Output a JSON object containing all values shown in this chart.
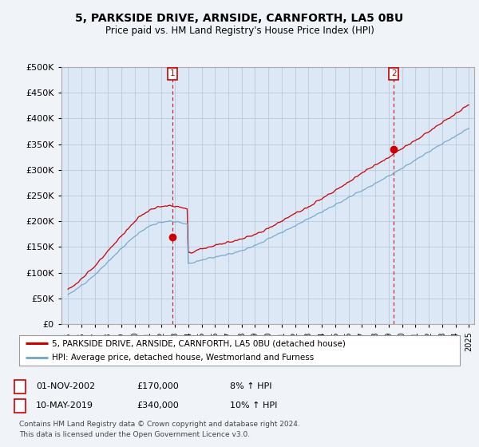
{
  "title": "5, PARKSIDE DRIVE, ARNSIDE, CARNFORTH, LA5 0BU",
  "subtitle": "Price paid vs. HM Land Registry's House Price Index (HPI)",
  "legend_line1": "5, PARKSIDE DRIVE, ARNSIDE, CARNFORTH, LA5 0BU (detached house)",
  "legend_line2": "HPI: Average price, detached house, Westmorland and Furness",
  "transaction1_date": "01-NOV-2002",
  "transaction1_price": 170000,
  "transaction1_label": "8% ↑ HPI",
  "transaction2_date": "10-MAY-2019",
  "transaction2_price": 340000,
  "transaction2_label": "10% ↑ HPI",
  "footnote1": "Contains HM Land Registry data © Crown copyright and database right 2024.",
  "footnote2": "This data is licensed under the Open Government Licence v3.0.",
  "price_color": "#cc0000",
  "hpi_color": "#7aaacc",
  "background_color": "#f0f4f8",
  "plot_bg_color": "#dce8f5",
  "grid_color": "#b0c4d8",
  "ylim": [
    0,
    500000
  ],
  "x_start_year": 1995,
  "x_end_year": 2025,
  "vline1_year": 2002.83,
  "vline2_year": 2019.37,
  "marker1_year": 2002.83,
  "marker1_price": 170000,
  "marker2_year": 2019.37,
  "marker2_price": 340000
}
